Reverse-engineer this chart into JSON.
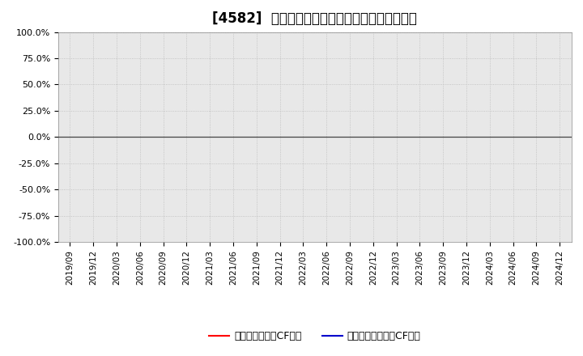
{
  "title": "[4582]  有利子負債キャッシュフロー比率の推移",
  "ylim": [
    -1.0,
    1.0
  ],
  "yticks": [
    -1.0,
    -0.75,
    -0.5,
    -0.25,
    0.0,
    0.25,
    0.5,
    0.75,
    1.0
  ],
  "ytick_labels": [
    "-100.0%",
    "-75.0%",
    "-50.0%",
    "-25.0%",
    "0.0%",
    "25.0%",
    "50.0%",
    "75.0%",
    "100.0%"
  ],
  "x_dates": [
    "2019/09",
    "2019/12",
    "2020/03",
    "2020/06",
    "2020/09",
    "2020/12",
    "2021/03",
    "2021/06",
    "2021/09",
    "2021/12",
    "2022/03",
    "2022/06",
    "2022/09",
    "2022/12",
    "2023/03",
    "2023/06",
    "2023/09",
    "2023/12",
    "2024/03",
    "2024/06",
    "2024/09",
    "2024/12"
  ],
  "series1_label": "有利子負債営業CF比率",
  "series1_color": "#ff0000",
  "series1_values": [],
  "series2_label": "有利子負債フリーCF比率",
  "series2_color": "#0000cc",
  "series2_values": [],
  "background_color": "#ffffff",
  "grid_color": "#bbbbbb",
  "plot_bg_color": "#e8e8e8",
  "title_fontsize": 12,
  "legend_fontsize": 9,
  "zero_line_color": "#444444",
  "tick_fontsize": 7.5,
  "ytick_fontsize": 8
}
